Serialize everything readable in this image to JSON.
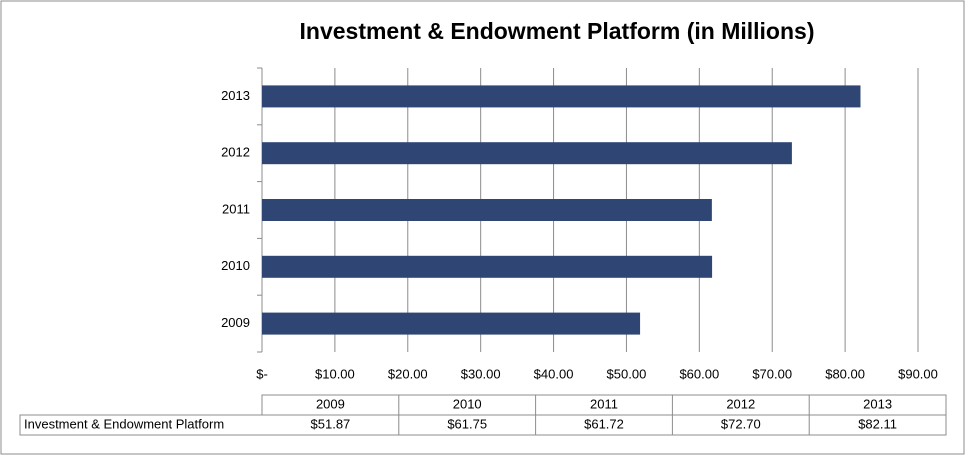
{
  "chart_data": {
    "type": "bar",
    "orientation": "horizontal",
    "title": "Investment & Endowment Platform (in Millions)",
    "categories": [
      "2009",
      "2010",
      "2011",
      "2012",
      "2013"
    ],
    "series": [
      {
        "name": "Investment & Endowment Platform",
        "color": "#2f4674",
        "values": [
          51.87,
          61.75,
          61.72,
          72.7,
          82.11
        ],
        "value_labels": [
          "$51.87",
          "$61.75",
          "$61.72",
          "$72.70",
          "$82.11"
        ]
      }
    ],
    "xlim": [
      0,
      90
    ],
    "xticks": [
      {
        "value": 0,
        "label": "$-"
      },
      {
        "value": 10,
        "label": "$10.00"
      },
      {
        "value": 20,
        "label": "$20.00"
      },
      {
        "value": 30,
        "label": "$30.00"
      },
      {
        "value": 40,
        "label": "$40.00"
      },
      {
        "value": 50,
        "label": "$50.00"
      },
      {
        "value": 60,
        "label": "$60.00"
      },
      {
        "value": 70,
        "label": "$70.00"
      },
      {
        "value": 80,
        "label": "$80.00"
      },
      {
        "value": 90,
        "label": "$90.00"
      }
    ],
    "grid": true
  }
}
